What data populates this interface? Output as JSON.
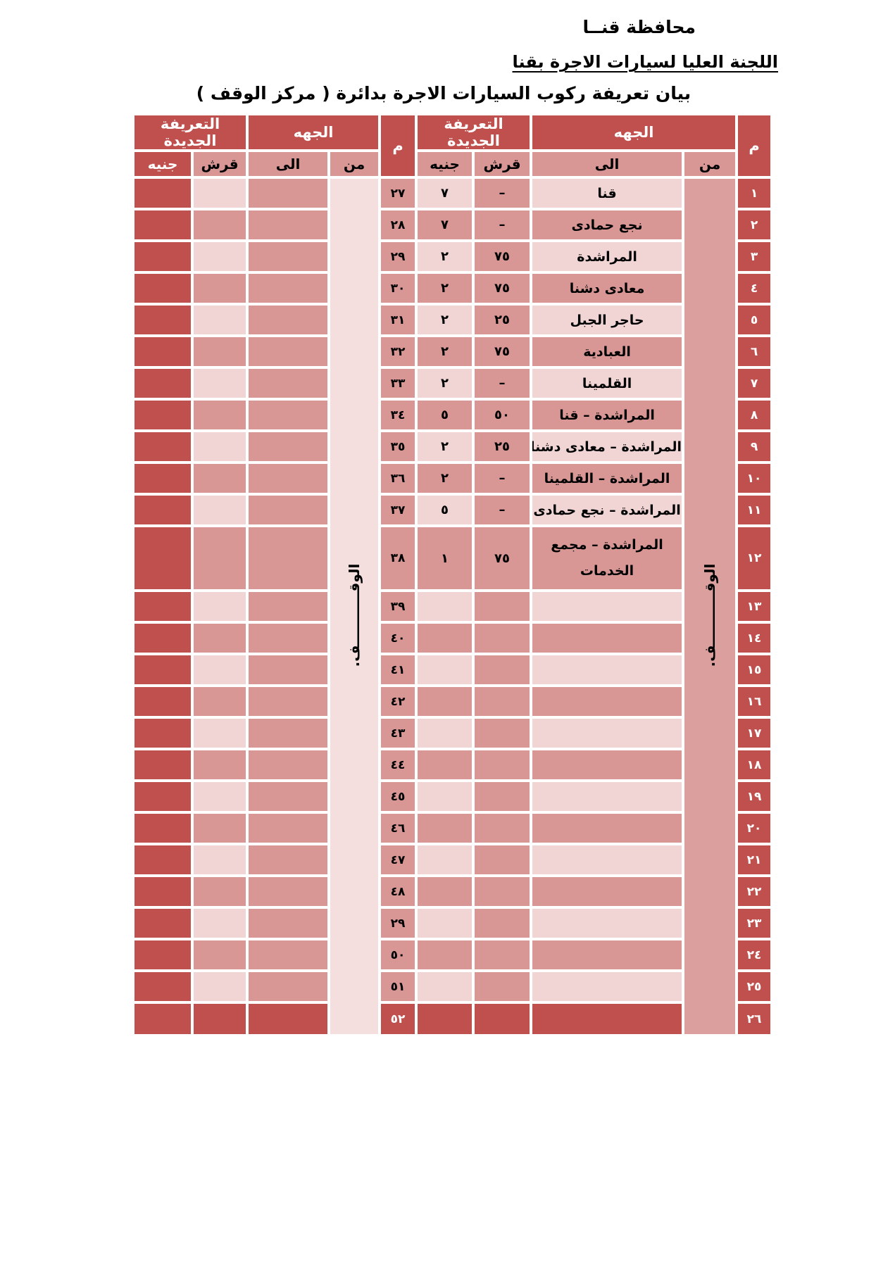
{
  "page": {
    "heading1": "محافظة قنــا",
    "heading2": "اللجنة العليا لسيارات الاجرة بقنا",
    "title": "بيان تعريفة ركوب السيارات الاجرة بدائرة ( مركز الوقف )"
  },
  "table": {
    "headers": {
      "num": "م",
      "side": "الجهه",
      "new_tariff": "التعريفة الجديدة",
      "from": "من",
      "to": "الى",
      "qirsh": "قرش",
      "geneih": "جنيه"
    },
    "from_value": "الوقـــــــــــف.",
    "right_rows": [
      {
        "num": "١",
        "to": "قنا",
        "qirsh": "–",
        "geneih": "٧"
      },
      {
        "num": "٢",
        "to": "نجع حمادى",
        "qirsh": "–",
        "geneih": "٧"
      },
      {
        "num": "٣",
        "to": "المراشدة",
        "qirsh": "٧٥",
        "geneih": "٢"
      },
      {
        "num": "٤",
        "to": "معادى دشنا",
        "qirsh": "٧٥",
        "geneih": "٢"
      },
      {
        "num": "٥",
        "to": "حاجر الجبل",
        "qirsh": "٢٥",
        "geneih": "٢"
      },
      {
        "num": "٦",
        "to": "العبادية",
        "qirsh": "٧٥",
        "geneih": "٢"
      },
      {
        "num": "٧",
        "to": "القلمينا",
        "qirsh": "–",
        "geneih": "٢"
      },
      {
        "num": "٨",
        "to": "المراشدة – قنا",
        "qirsh": "٥٠",
        "geneih": "٥"
      },
      {
        "num": "٩",
        "to": "المراشدة – معادى دشنا",
        "qirsh": "٢٥",
        "geneih": "٢"
      },
      {
        "num": "١٠",
        "to": "المراشدة – القلمينا",
        "qirsh": "–",
        "geneih": "٢"
      },
      {
        "num": "١١",
        "to": "المراشدة – نجع حمادى",
        "qirsh": "–",
        "geneih": "٥"
      },
      {
        "num": "١٢",
        "to": "المراشدة – مجمع الخدمات",
        "qirsh": "٧٥",
        "geneih": "١"
      },
      {
        "num": "١٣",
        "to": "",
        "qirsh": "",
        "geneih": ""
      },
      {
        "num": "١٤",
        "to": "",
        "qirsh": "",
        "geneih": ""
      },
      {
        "num": "١٥",
        "to": "",
        "qirsh": "",
        "geneih": ""
      },
      {
        "num": "١٦",
        "to": "",
        "qirsh": "",
        "geneih": ""
      },
      {
        "num": "١٧",
        "to": "",
        "qirsh": "",
        "geneih": ""
      },
      {
        "num": "١٨",
        "to": "",
        "qirsh": "",
        "geneih": ""
      },
      {
        "num": "١٩",
        "to": "",
        "qirsh": "",
        "geneih": ""
      },
      {
        "num": "٢٠",
        "to": "",
        "qirsh": "",
        "geneih": ""
      },
      {
        "num": "٢١",
        "to": "",
        "qirsh": "",
        "geneih": ""
      },
      {
        "num": "٢٢",
        "to": "",
        "qirsh": "",
        "geneih": ""
      },
      {
        "num": "٢٣",
        "to": "",
        "qirsh": "",
        "geneih": ""
      },
      {
        "num": "٢٤",
        "to": "",
        "qirsh": "",
        "geneih": ""
      },
      {
        "num": "٢٥",
        "to": "",
        "qirsh": "",
        "geneih": ""
      },
      {
        "num": "٢٦",
        "to": "",
        "qirsh": "",
        "geneih": ""
      }
    ],
    "left_nums": [
      "٢٧",
      "٢٨",
      "٢٩",
      "٣٠",
      "٣١",
      "٣٢",
      "٣٣",
      "٣٤",
      "٣٥",
      "٣٦",
      "٣٧",
      "٣٨",
      "٣٩",
      "٤٠",
      "٤١",
      "٤٢",
      "٤٣",
      "٤٤",
      "٤٥",
      "٤٦",
      "٤٧",
      "٤٨",
      "٢٩",
      "٥٠",
      "٥١",
      "٥٢"
    ]
  }
}
